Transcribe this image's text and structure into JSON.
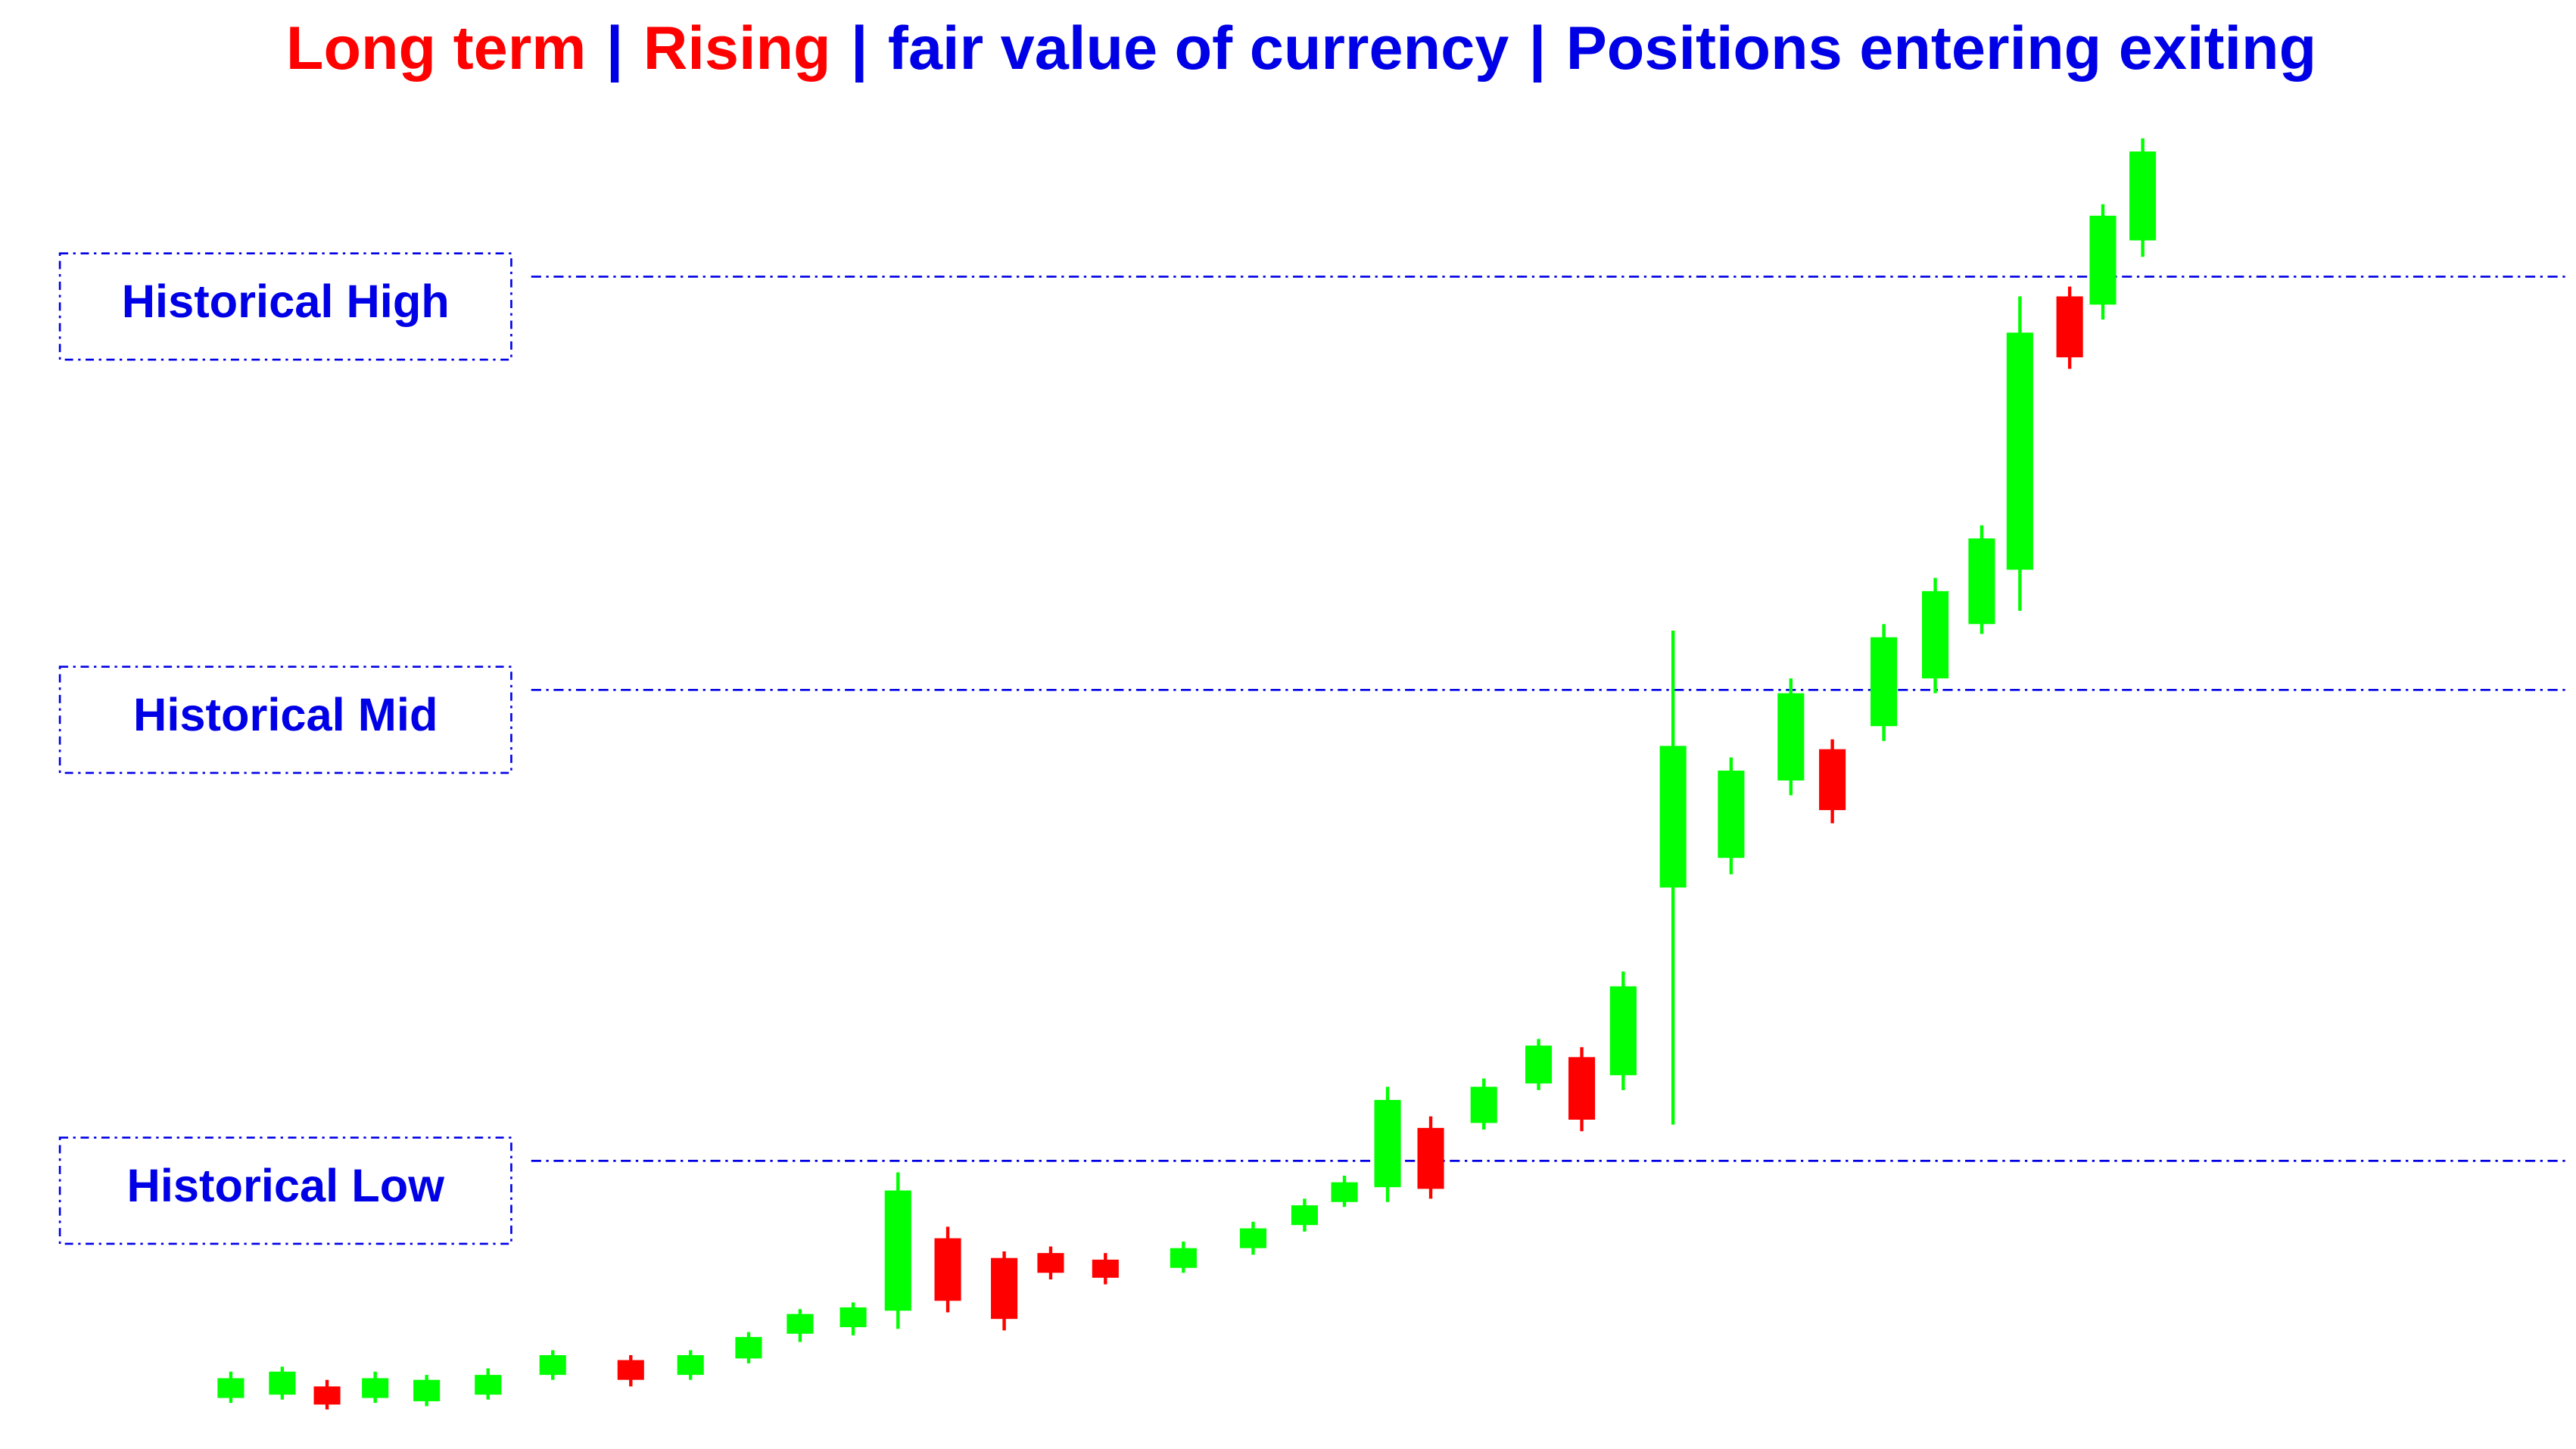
{
  "chart_data": {
    "type": "candlestick",
    "title_parts": [
      {
        "text": "Long term",
        "color": "#ff0000"
      },
      {
        "text": "|",
        "color": "#0000e6"
      },
      {
        "text": "Rising",
        "color": "#ff0000"
      },
      {
        "text": "|",
        "color": "#0000e6"
      },
      {
        "text": "fair value of currency",
        "color": "#0000e6"
      },
      {
        "text": "|",
        "color": "#0000e6"
      },
      {
        "text": "Positions entering exiting",
        "color": "#0000e6"
      }
    ],
    "x": [
      139,
      170,
      197,
      226,
      257,
      294,
      333,
      380,
      416,
      451,
      482,
      514,
      541,
      571,
      605,
      633,
      666,
      713,
      755,
      786,
      810,
      836,
      862,
      894,
      927,
      953,
      978,
      1008,
      1043,
      1079,
      1104,
      1135,
      1166,
      1194,
      1217,
      1247,
      1267,
      1291
    ],
    "open": [
      31,
      33,
      38,
      31,
      29,
      33,
      45,
      54,
      45,
      55,
      70,
      74,
      84,
      128,
      116,
      119,
      115,
      110,
      122,
      136,
      150,
      159,
      195,
      198,
      222,
      238,
      227,
      341,
      359,
      406,
      425,
      439,
      468,
      501,
      534,
      700,
      695,
      734
    ],
    "high": [
      47,
      50,
      42,
      47,
      45,
      49,
      60,
      57,
      60,
      71,
      85,
      89,
      168,
      135,
      120,
      123,
      119,
      126,
      138,
      152,
      166,
      220,
      202,
      225,
      249,
      244,
      290,
      497,
      420,
      468,
      431,
      501,
      529,
      561,
      700,
      706,
      756,
      796
    ],
    "low": [
      28,
      30,
      24,
      28,
      26,
      30,
      42,
      38,
      42,
      52,
      65,
      69,
      73,
      83,
      72,
      103,
      100,
      107,
      118,
      132,
      147,
      150,
      152,
      194,
      218,
      193,
      218,
      197,
      349,
      397,
      380,
      430,
      459,
      495,
      509,
      656,
      686,
      724
    ],
    "close": [
      43,
      47,
      27,
      43,
      42,
      45,
      57,
      42,
      57,
      68,
      82,
      86,
      157,
      90,
      79,
      107,
      104,
      122,
      134,
      148,
      162,
      212,
      158,
      220,
      245,
      200,
      281,
      427,
      412,
      459,
      388,
      493,
      521,
      553,
      678,
      663,
      749,
      788
    ],
    "up_color": "#00ff00",
    "down_color": "#ff0000",
    "xlim": [
      0,
      1552
    ],
    "ylim": [
      0,
      880
    ],
    "levels": [
      {
        "label": "Historical High",
        "value": 712
      },
      {
        "label": "Historical Mid",
        "value": 461
      },
      {
        "label": "Historical Low",
        "value": 175
      }
    ],
    "level_color": "#0000e6"
  }
}
